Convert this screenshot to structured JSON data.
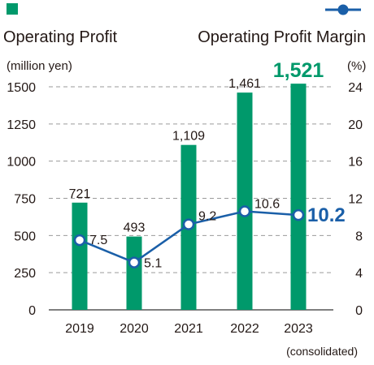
{
  "chart_data": {
    "type": "bar",
    "categories": [
      "2019",
      "2020",
      "2021",
      "2022",
      "2023"
    ],
    "legend": {
      "bar_label": "Operating Profit",
      "line_label": "Operating Profit Margin"
    },
    "left_axis": {
      "unit": "(million yen)",
      "min": 0,
      "max": 1500,
      "ticks": [
        "0",
        "250",
        "500",
        "750",
        "1000",
        "1250",
        "1500"
      ]
    },
    "right_axis": {
      "unit": "(%)",
      "min": 0,
      "max": 24,
      "ticks": [
        "0",
        "4",
        "8",
        "12",
        "16",
        "20",
        "24"
      ]
    },
    "series": [
      {
        "name": "Operating Profit",
        "kind": "bar",
        "axis": "left",
        "color": "#00996b",
        "values": [
          721,
          493,
          1109,
          1461,
          1521
        ],
        "labels": [
          "721",
          "493",
          "1,109",
          "1,461",
          "1,521"
        ]
      },
      {
        "name": "Operating Profit Margin",
        "kind": "line",
        "axis": "right",
        "color": "#1a5fa8",
        "values": [
          7.5,
          5.1,
          9.2,
          10.6,
          10.2
        ],
        "labels": [
          "7.5",
          "5.1",
          "9.2",
          "10.6",
          "10.2"
        ]
      }
    ],
    "grid": true,
    "footnote": "(consolidated)"
  }
}
